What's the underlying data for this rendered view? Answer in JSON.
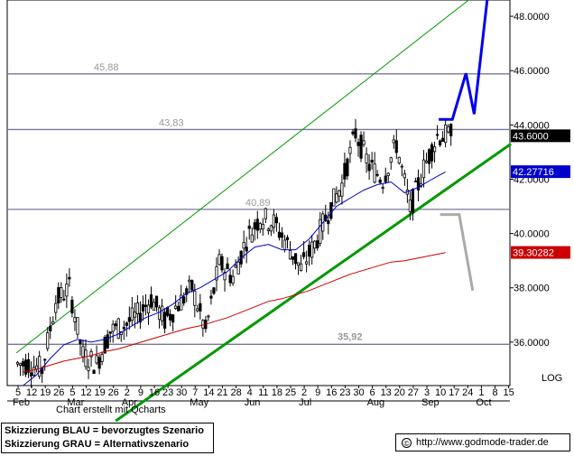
{
  "chart_data": {
    "type": "candlestick",
    "ylim": [
      34.4,
      48.6
    ],
    "y_ticks": [
      "48.0000",
      "46.0000",
      "44.0000",
      "42.0000",
      "40.0000",
      "38.0000",
      "36.0000"
    ],
    "y_tick_values": [
      48,
      46,
      44,
      42,
      40,
      38,
      36
    ],
    "scale_label": "LOG",
    "x_ticks": [
      "5",
      "12",
      "19",
      "26",
      "5",
      "12",
      "19",
      "26",
      "2",
      "9",
      "16",
      "23",
      "30",
      "7",
      "14",
      "21",
      "28",
      "4",
      "11",
      "18",
      "25",
      "2",
      "9",
      "16",
      "23",
      "30",
      "6",
      "13",
      "20",
      "27",
      "3",
      "10",
      "17",
      "24",
      "1",
      "8",
      "15"
    ],
    "months": [
      "Feb",
      "Mar",
      "Apr",
      "May",
      "Jun",
      "Jul",
      "Aug",
      "Sep",
      "Oct"
    ],
    "credit_text": "Chart erstellt mit Qcharts",
    "horizontal_levels": [
      {
        "label": "45,88",
        "value": 45.88
      },
      {
        "label": "43,83",
        "value": 43.83
      },
      {
        "label": "40,89",
        "value": 40.89
      },
      {
        "label": "35,92",
        "value": 35.92
      }
    ],
    "price_tags": [
      {
        "text": "43.6000",
        "value": 43.6,
        "bg": "#000000",
        "fg": "#ffffff"
      },
      {
        "text": "42.27716",
        "value": 42.27716,
        "bg": "#0000cc",
        "fg": "#ffffff"
      },
      {
        "text": "39.30282",
        "value": 39.30282,
        "bg": "#cc0000",
        "fg": "#ffffff"
      }
    ],
    "candles": {
      "weeks": 32,
      "weekly_close": [
        35.2,
        35.0,
        37.5,
        38.0,
        35.5,
        35.2,
        36.4,
        36.6,
        37.0,
        37.6,
        36.8,
        37.4,
        38.0,
        36.4,
        38.9,
        38.4,
        39.8,
        40.6,
        40.4,
        39.6,
        38.7,
        39.6,
        40.8,
        41.8,
        43.7,
        42.5,
        42.0,
        43.3,
        40.9,
        42.4,
        43.6,
        43.6
      ],
      "last_close": 43.6
    },
    "series": [
      {
        "label": "blue moving average",
        "color": "#0000cc",
        "points": [
          [
            0,
            34.4
          ],
          [
            1,
            34.8
          ],
          [
            2,
            35.4
          ],
          [
            3,
            35.9
          ],
          [
            4,
            36.1
          ],
          [
            5,
            36.0
          ],
          [
            6,
            36.1
          ],
          [
            7,
            36.3
          ],
          [
            8,
            36.6
          ],
          [
            9,
            36.9
          ],
          [
            10,
            37.1
          ],
          [
            11,
            37.4
          ],
          [
            12,
            37.8
          ],
          [
            13,
            38.0
          ],
          [
            14,
            38.3
          ],
          [
            15,
            38.6
          ],
          [
            16,
            39.1
          ],
          [
            17,
            39.5
          ],
          [
            18,
            39.6
          ],
          [
            19,
            39.4
          ],
          [
            20,
            39.4
          ],
          [
            21,
            39.8
          ],
          [
            22,
            40.4
          ],
          [
            23,
            41.0
          ],
          [
            24,
            41.3
          ],
          [
            25,
            41.6
          ],
          [
            26,
            41.8
          ],
          [
            27,
            41.9
          ],
          [
            28,
            41.5
          ],
          [
            29,
            41.7
          ],
          [
            30,
            42.0
          ],
          [
            31,
            42.27
          ]
        ]
      },
      {
        "label": "red moving average",
        "color": "#cc0000",
        "points": [
          [
            0,
            34.9
          ],
          [
            1,
            35.0
          ],
          [
            2,
            35.15
          ],
          [
            3,
            35.3
          ],
          [
            4,
            35.4
          ],
          [
            5,
            35.5
          ],
          [
            6,
            35.65
          ],
          [
            7,
            35.75
          ],
          [
            8,
            35.9
          ],
          [
            9,
            36.05
          ],
          [
            10,
            36.2
          ],
          [
            11,
            36.35
          ],
          [
            12,
            36.5
          ],
          [
            13,
            36.6
          ],
          [
            14,
            36.75
          ],
          [
            15,
            36.9
          ],
          [
            16,
            37.1
          ],
          [
            17,
            37.3
          ],
          [
            18,
            37.5
          ],
          [
            19,
            37.6
          ],
          [
            20,
            37.75
          ],
          [
            21,
            37.9
          ],
          [
            22,
            38.1
          ],
          [
            23,
            38.3
          ],
          [
            24,
            38.5
          ],
          [
            25,
            38.65
          ],
          [
            26,
            38.8
          ],
          [
            27,
            38.95
          ],
          [
            28,
            39.0
          ],
          [
            29,
            39.1
          ],
          [
            30,
            39.2
          ],
          [
            31,
            39.3
          ]
        ]
      }
    ],
    "trend_lines": [
      {
        "label": "upper channel",
        "color": "#009900",
        "points": [
          [
            0,
            35.6
          ],
          [
            33.2,
            48.6
          ]
        ]
      },
      {
        "label": "lower channel",
        "color": "#009900",
        "points": [
          [
            7.3,
            33.1
          ],
          [
            36.3,
            43.3
          ]
        ]
      }
    ],
    "scenarios": [
      {
        "label": "BLAU",
        "color": "#0000ee",
        "points": [
          [
            31,
            44.2
          ],
          [
            32,
            44.2
          ],
          [
            33,
            45.9
          ],
          [
            33.6,
            44.4
          ],
          [
            34.6,
            48.8
          ]
        ]
      },
      {
        "label": "GRAU",
        "color": "#aaaaaa",
        "points": [
          [
            31.1,
            40.7
          ],
          [
            32.5,
            40.7
          ],
          [
            33.5,
            37.9
          ]
        ]
      }
    ]
  },
  "legend": {
    "line_blue": "Skizzierung BLAU = bevorzugtes Szenario",
    "line_gray": "Skizzierung GRAU = Alternativszenario"
  },
  "footer": {
    "copyright_icon": "©",
    "url": "http://www.godmode-trader.de"
  }
}
